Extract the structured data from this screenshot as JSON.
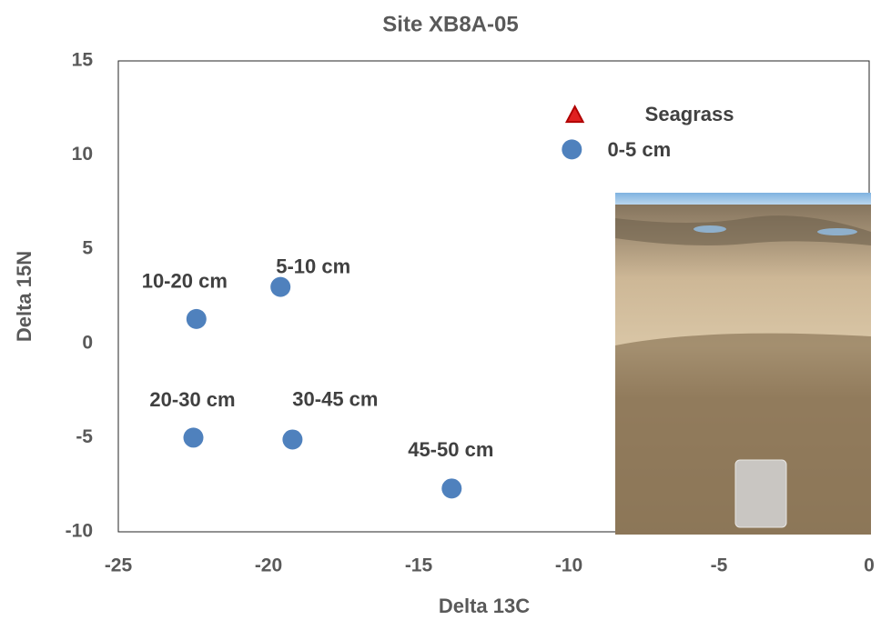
{
  "chart_data": {
    "type": "scatter",
    "title": "Site XB8A-05",
    "x_label": "Delta 13C",
    "y_label": "Delta 15N",
    "xlim": [
      -25,
      0
    ],
    "xticks": [
      -25,
      -20,
      -15,
      -10,
      -5,
      0
    ],
    "ylim": [
      -10,
      15
    ],
    "yticks": [
      -10,
      -5,
      0,
      5,
      10,
      15
    ],
    "grid": false,
    "series": [
      {
        "name": "Seagrass",
        "color": "#e02020",
        "marker": "triangle",
        "x": [
          -9.8
        ],
        "y": [
          12.1
        ]
      },
      {
        "color": "#4f81bd",
        "marker": "circle",
        "x": [
          -9.9,
          -19.6,
          -22.4,
          -22.5,
          -19.2,
          -13.9
        ],
        "y": [
          10.3,
          3.0,
          1.3,
          -5.0,
          -5.1,
          -7.7
        ],
        "labels": [
          "0-5 cm",
          "5-10 cm",
          "10-20 cm",
          "20-30 cm",
          "30-45 cm",
          "45-50 cm"
        ]
      }
    ]
  }
}
